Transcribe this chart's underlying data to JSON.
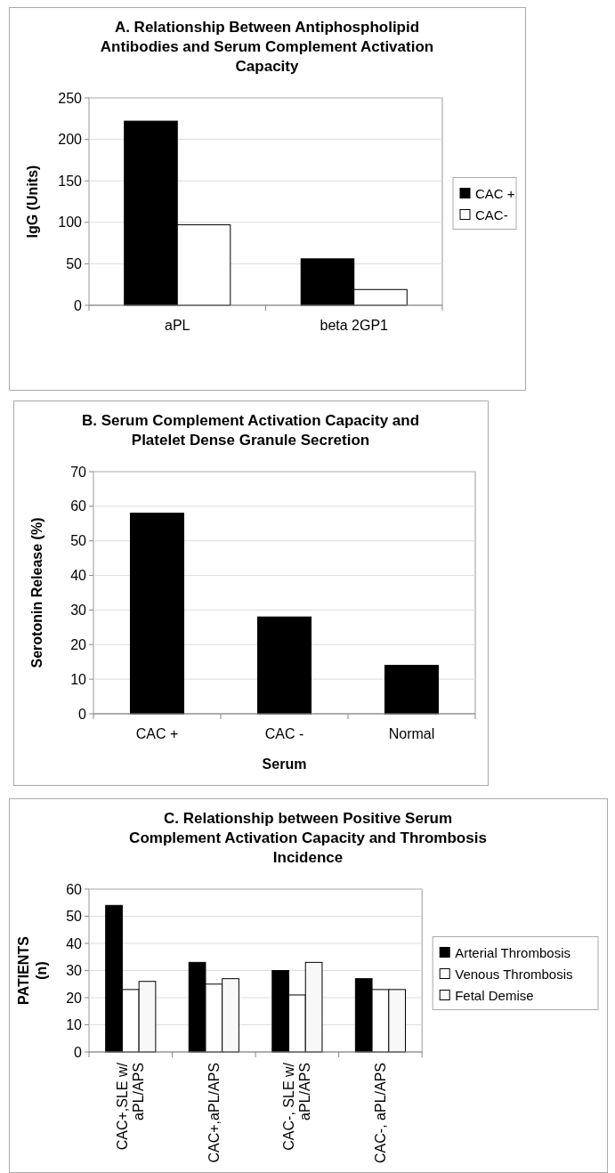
{
  "chart_data": [
    {
      "type": "bar",
      "title": "A.   Relationship Between Antiphospholipid Antibodies and Serum Complement Activation Capacity",
      "ylabel": "IgG (Units)",
      "categories": [
        "aPL",
        "beta 2GP1"
      ],
      "series": [
        {
          "name": "CAC +",
          "color": "#000000",
          "values": [
            222,
            56
          ]
        },
        {
          "name": "CAC-",
          "color": "#ffffff",
          "values": [
            97,
            19
          ]
        }
      ],
      "ylim": [
        0,
        250
      ],
      "yticks": [
        0,
        50,
        100,
        150,
        200,
        250
      ],
      "grid": "y",
      "legend": "right"
    },
    {
      "type": "bar",
      "title": "B.   Serum Complement Activation Capacity and Platelet Dense Granule Secretion",
      "xlabel": "Serum",
      "ylabel": "Serotonin Release (%)",
      "categories": [
        "CAC +",
        "CAC -",
        "Normal"
      ],
      "values": [
        58,
        28,
        14
      ],
      "color": "#000000",
      "ylim": [
        0,
        70
      ],
      "yticks": [
        0,
        10,
        20,
        30,
        40,
        50,
        60,
        70
      ],
      "grid": "y"
    },
    {
      "type": "bar",
      "title": "C.       Relationship between Positive Serum Complement Activation Capacity and Thrombosis Incidence",
      "ylabel": "PATIENTS (n)",
      "categories": [
        "CAC+,SLE w/ aPL/APS",
        "CAC+,aPL/APS",
        "CAC-, SLE w/ aPL/APS",
        "CAC-, aPL/APS"
      ],
      "series": [
        {
          "name": "Arterial Thrombosis",
          "color": "#000000",
          "values": [
            54,
            33,
            30,
            27
          ]
        },
        {
          "name": "Venous Thrombosis",
          "color": "#ffffff",
          "values": [
            23,
            25,
            21,
            23
          ]
        },
        {
          "name": "Fetal Demise",
          "color": "#f8f8f8",
          "values": [
            26,
            27,
            33,
            23
          ]
        }
      ],
      "ylim": [
        0,
        60
      ],
      "yticks": [
        0,
        10,
        20,
        30,
        40,
        50,
        60
      ],
      "grid": "y",
      "legend": "right"
    }
  ]
}
